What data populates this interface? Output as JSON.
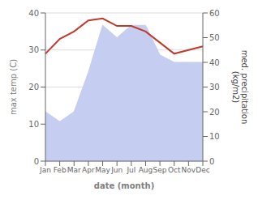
{
  "chart_data": {
    "type": "line",
    "categories": [
      "Jan",
      "Feb",
      "Mar",
      "Apr",
      "May",
      "Jun",
      "Jul",
      "Aug",
      "Sep",
      "Oct",
      "Nov",
      "Dec"
    ],
    "series": [
      {
        "type": "area",
        "axis": "y2",
        "color": "#c5cef0",
        "values": [
          20,
          16,
          20,
          36,
          55,
          50,
          55,
          55,
          43,
          40,
          40,
          40
        ]
      },
      {
        "type": "line",
        "color": "#c0392b",
        "values": [
          29,
          33,
          35,
          38,
          38.5,
          36.5,
          36.5,
          35,
          32,
          29,
          30,
          31
        ]
      }
    ],
    "xlabel": "date (month)",
    "ylabel": "max temp (C)",
    "y2label": "med. precipitation\n(kg/m2)",
    "ylim": [
      0,
      40
    ],
    "yticks": [
      0,
      10,
      20,
      30,
      40
    ],
    "y2lim": [
      0,
      60
    ],
    "y2ticks": [
      0,
      10,
      20,
      30,
      40,
      50,
      60
    ],
    "grid": true
  }
}
